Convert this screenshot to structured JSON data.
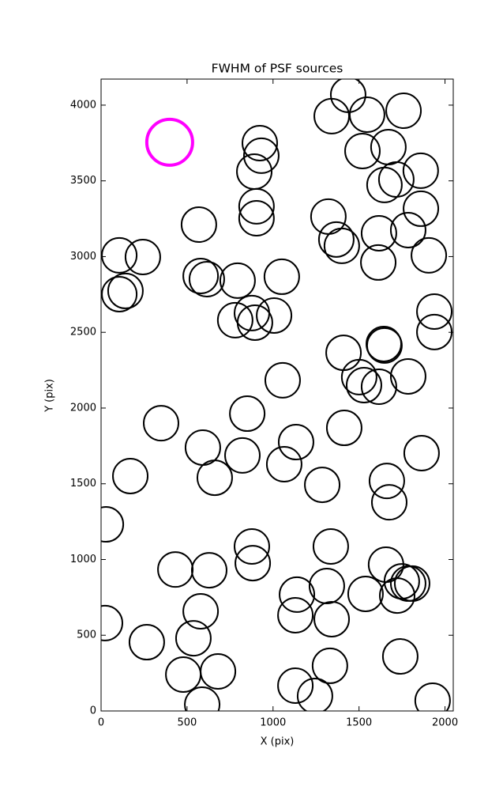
{
  "chart_data": {
    "type": "scatter",
    "title": "FWHM of PSF sources",
    "x_label": "X (pix)",
    "y_label": "Y (pix)",
    "xlim": [
      0,
      2048
    ],
    "ylim": [
      0,
      4172
    ],
    "xticks": [
      0,
      500,
      1000,
      1500,
      2000
    ],
    "yticks": [
      0,
      500,
      1000,
      1500,
      2000,
      2500,
      3000,
      3500,
      4000
    ],
    "series": [
      {
        "color": "#000000",
        "x": [
          1341,
          1437,
          1547,
          1759,
          923,
          932,
          891,
          1520,
          1671,
          1859,
          1648,
          1717,
          1322,
          1368,
          1400,
          1860,
          904,
          904,
          569,
          1616,
          1786,
          1612,
          1906,
          106,
          243,
          794,
          1051,
          579,
          615,
          106,
          142,
          780,
          877,
          895,
          1006,
          1938,
          1938,
          1410,
          1644,
          1648,
          1501,
          1529,
          1616,
          1786,
          1056,
          850,
          349,
          1134,
          1414,
          592,
          822,
          1065,
          1864,
          661,
          170,
          1286,
          1662,
          1676,
          28,
          877,
          882,
          1336,
          432,
          629,
          1657,
          1749,
          1786,
          1809,
          1722,
          1313,
          1139,
          1538,
          579,
          1130,
          1341,
          23,
          537,
          266,
          1740,
          1331,
          680,
          478,
          1130,
          1244,
          588,
          1928
        ],
        "y": [
          3927,
          4068,
          3937,
          3963,
          3749,
          3666,
          3561,
          3697,
          3723,
          3567,
          3473,
          3509,
          3264,
          3113,
          3071,
          3316,
          3332,
          3253,
          3211,
          3154,
          3175,
          2961,
          3008,
          3008,
          2997,
          2841,
          2867,
          2872,
          2851,
          2752,
          2773,
          2580,
          2627,
          2564,
          2611,
          2637,
          2502,
          2365,
          2423,
          2413,
          2204,
          2151,
          2141,
          2209,
          2183,
          1963,
          1900,
          1775,
          1869,
          1739,
          1687,
          1629,
          1702,
          1540,
          1551,
          1493,
          1519,
          1378,
          1232,
          1086,
          976,
          1086,
          934,
          929,
          966,
          856,
          841,
          841,
          762,
          825,
          768,
          773,
          658,
          632,
          606,
          580,
          480,
          454,
          360,
          298,
          261,
          240,
          167,
          99,
          42,
          68
        ]
      },
      {
        "color": "#ff00ff",
        "x": [
          399
        ],
        "y": [
          3755
        ]
      }
    ]
  }
}
